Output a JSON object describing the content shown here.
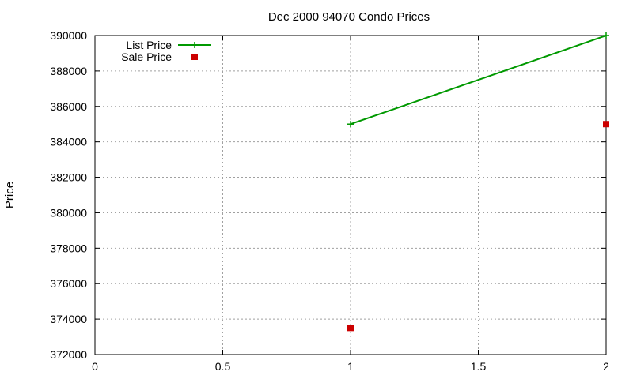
{
  "chart_data": {
    "type": "line",
    "title": "Dec 2000 94070 Condo Prices",
    "xlabel": "",
    "ylabel": "Price",
    "xlim": [
      0,
      2
    ],
    "ylim": [
      372000,
      390000
    ],
    "x_ticks": [
      "0",
      "0.5",
      "1",
      "1.5",
      "2"
    ],
    "x_tick_values": [
      0,
      0.5,
      1,
      1.5,
      2
    ],
    "y_ticks": [
      "372000",
      "374000",
      "376000",
      "378000",
      "380000",
      "382000",
      "384000",
      "386000",
      "388000",
      "390000"
    ],
    "y_tick_values": [
      372000,
      374000,
      376000,
      378000,
      380000,
      382000,
      384000,
      386000,
      388000,
      390000
    ],
    "grid": true,
    "legend_position": "top-left",
    "series": [
      {
        "name": "List Price",
        "style": "linespoints",
        "marker": "plus",
        "color": "#009900",
        "x": [
          1,
          2
        ],
        "y": [
          385000,
          390000
        ]
      },
      {
        "name": "Sale Price",
        "style": "points",
        "marker": "square",
        "color": "#cc0000",
        "x": [
          1,
          2
        ],
        "y": [
          373500,
          385000
        ]
      }
    ]
  }
}
